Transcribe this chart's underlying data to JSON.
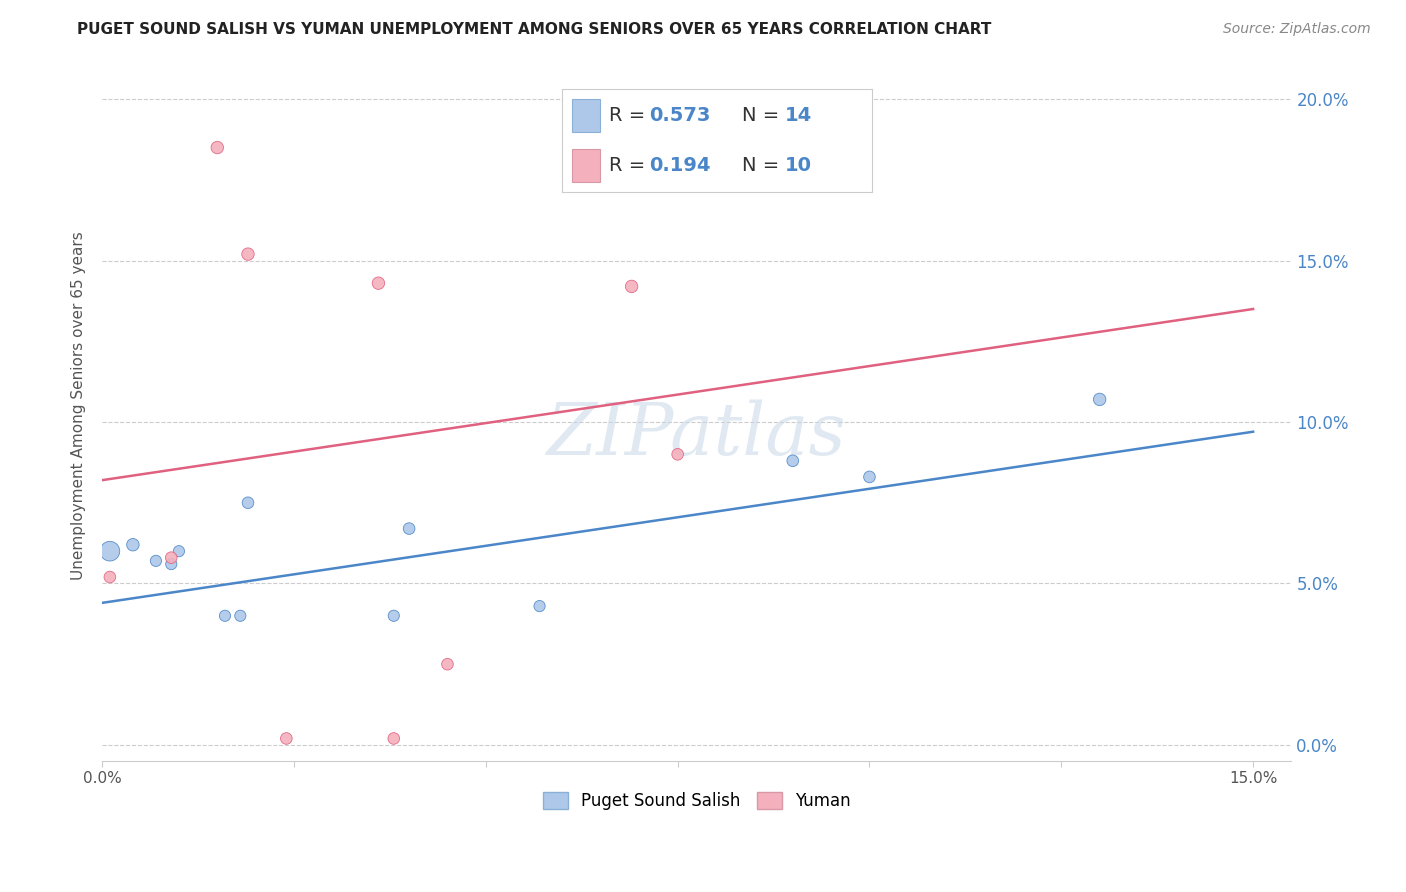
{
  "title": "PUGET SOUND SALISH VS YUMAN UNEMPLOYMENT AMONG SENIORS OVER 65 YEARS CORRELATION CHART",
  "source": "Source: ZipAtlas.com",
  "ylabel": "Unemployment Among Seniors over 65 years",
  "xlim": [
    0.0,
    0.155
  ],
  "ylim": [
    -0.005,
    0.215
  ],
  "xticks": [
    0.0,
    0.025,
    0.05,
    0.075,
    0.1,
    0.125,
    0.15
  ],
  "yticks": [
    0.0,
    0.05,
    0.1,
    0.15,
    0.2
  ],
  "background_color": "#ffffff",
  "grid_color": "#cccccc",
  "blue_series": {
    "name": "Puget Sound Salish",
    "R": 0.573,
    "N": 14,
    "color": "#adc8e8",
    "line_color": "#4a86c8",
    "x": [
      0.001,
      0.004,
      0.007,
      0.009,
      0.01,
      0.016,
      0.018,
      0.019,
      0.038,
      0.04,
      0.057,
      0.09,
      0.1,
      0.13
    ],
    "y": [
      0.06,
      0.062,
      0.057,
      0.056,
      0.06,
      0.04,
      0.04,
      0.075,
      0.04,
      0.067,
      0.043,
      0.088,
      0.083,
      0.107
    ],
    "sizes": [
      200,
      80,
      65,
      65,
      65,
      65,
      65,
      70,
      65,
      70,
      65,
      70,
      70,
      80
    ]
  },
  "pink_series": {
    "name": "Yuman",
    "R": 0.194,
    "N": 10,
    "color": "#f4b0bc",
    "line_color": "#e06080",
    "x": [
      0.001,
      0.009,
      0.015,
      0.019,
      0.024,
      0.038,
      0.045,
      0.069,
      0.075,
      0.036
    ],
    "y": [
      0.052,
      0.058,
      0.185,
      0.152,
      0.002,
      0.002,
      0.025,
      0.142,
      0.09,
      0.143
    ],
    "sizes": [
      70,
      70,
      80,
      80,
      70,
      70,
      70,
      80,
      70,
      80
    ]
  },
  "blue_line_x": [
    0.0,
    0.15
  ],
  "blue_line_y": [
    0.044,
    0.097
  ],
  "pink_line_x": [
    0.0,
    0.15
  ],
  "pink_line_y": [
    0.082,
    0.135
  ],
  "legend_blue_color": "#adc8e8",
  "legend_pink_color": "#f4b0bc",
  "legend_text_color": "#4a86c8",
  "title_fontsize": 11,
  "source_fontsize": 10,
  "axis_label_fontsize": 11,
  "tick_fontsize": 11,
  "legend_fontsize": 14,
  "right_ytick_color": "#4a86c8",
  "right_ytick_fontsize": 12
}
